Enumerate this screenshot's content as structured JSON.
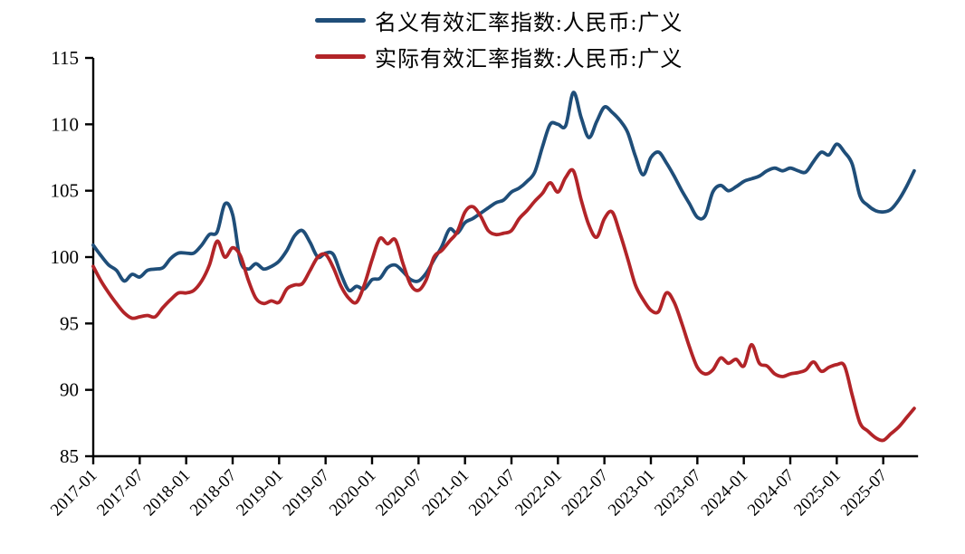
{
  "legend": [
    {
      "label": "名义有效汇率指数:人民币:广义",
      "color": "#1f4e79"
    },
    {
      "label": "实际有效汇率指数:人民币:广义",
      "color": "#b22428"
    }
  ],
  "chart_data": {
    "type": "line",
    "title": "",
    "xlabel": "",
    "ylabel": "",
    "ylim": [
      85,
      115
    ],
    "y_ticks": [
      85,
      90,
      95,
      100,
      105,
      110,
      115
    ],
    "x_tick_labels": [
      "2017-01",
      "2017-07",
      "2018-01",
      "2018-07",
      "2019-01",
      "2019-07",
      "2020-01",
      "2020-07",
      "2021-01",
      "2021-07",
      "2022-01",
      "2022-07",
      "2023-01",
      "2023-07",
      "2024-01",
      "2024-07",
      "2025-01",
      "2025-07"
    ],
    "x_start": "2017-01",
    "x_end": "2025-11",
    "x_frequency": "monthly",
    "grid": false,
    "legend_position": "top",
    "axis_color": "#000000",
    "series": [
      {
        "name": "名义有效汇率指数:人民币:广义",
        "color": "#1f4e79",
        "values": [
          100.9,
          100.1,
          99.4,
          99.0,
          98.2,
          98.7,
          98.5,
          99.0,
          99.1,
          99.2,
          99.9,
          100.3,
          100.3,
          100.3,
          100.9,
          101.7,
          101.9,
          104.0,
          103.2,
          99.7,
          99.1,
          99.5,
          99.1,
          99.3,
          99.7,
          100.5,
          101.6,
          102.0,
          101.1,
          100.0,
          100.3,
          100.2,
          98.7,
          97.5,
          97.8,
          97.6,
          98.3,
          98.4,
          99.2,
          99.4,
          98.9,
          98.3,
          98.2,
          98.8,
          99.8,
          100.8,
          102.1,
          101.8,
          102.6,
          102.9,
          103.3,
          103.7,
          104.1,
          104.3,
          104.9,
          105.2,
          105.7,
          106.4,
          108.3,
          110.0,
          110.0,
          109.9,
          112.4,
          110.5,
          109.0,
          110.2,
          111.3,
          110.9,
          110.3,
          109.4,
          107.6,
          106.2,
          107.5,
          107.9,
          107.1,
          106.1,
          105.0,
          104.0,
          103.0,
          103.1,
          104.9,
          105.4,
          105.0,
          105.3,
          105.7,
          105.9,
          106.1,
          106.5,
          106.7,
          106.5,
          106.7,
          106.5,
          106.4,
          107.2,
          107.9,
          107.7,
          108.5,
          107.9,
          107.0,
          104.6,
          103.9,
          103.5,
          103.4,
          103.6,
          104.3,
          105.3,
          106.5
        ]
      },
      {
        "name": "实际有效汇率指数:人民币:广义",
        "color": "#b22428",
        "values": [
          99.3,
          98.2,
          97.3,
          96.5,
          95.8,
          95.4,
          95.5,
          95.6,
          95.5,
          96.2,
          96.8,
          97.3,
          97.3,
          97.5,
          98.2,
          99.4,
          101.2,
          100.0,
          100.7,
          100.1,
          98.3,
          96.9,
          96.5,
          96.7,
          96.6,
          97.6,
          97.9,
          98.0,
          99.0,
          100.0,
          100.2,
          99.2,
          97.8,
          96.9,
          96.6,
          97.9,
          99.8,
          101.4,
          101.0,
          101.3,
          99.5,
          97.9,
          97.5,
          98.3,
          100.0,
          100.5,
          101.2,
          101.9,
          103.4,
          103.8,
          103.1,
          102.0,
          101.7,
          101.8,
          102.0,
          102.9,
          103.5,
          104.2,
          104.8,
          105.6,
          104.9,
          106.0,
          106.5,
          104.3,
          102.4,
          101.5,
          102.9,
          103.4,
          101.8,
          99.9,
          97.9,
          96.8,
          96.0,
          95.9,
          97.3,
          96.6,
          95.0,
          93.2,
          91.7,
          91.2,
          91.5,
          92.4,
          92.0,
          92.3,
          91.8,
          93.4,
          92.0,
          91.8,
          91.2,
          91.0,
          91.2,
          91.3,
          91.5,
          92.1,
          91.4,
          91.7,
          91.9,
          91.8,
          89.6,
          87.5,
          86.9,
          86.4,
          86.2,
          86.7,
          87.2,
          87.9,
          88.6
        ]
      }
    ]
  }
}
